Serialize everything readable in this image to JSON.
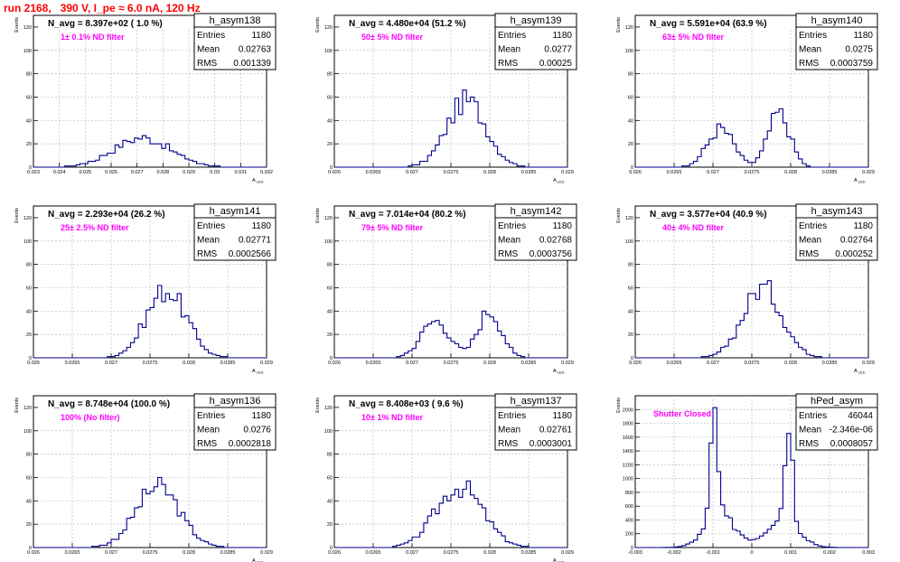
{
  "canvas": {
    "title": "run 2168,   390 V, I_pe ≈ 6.0 nA, 120 Hz",
    "colors": {
      "title": "#ff0000",
      "note": "#ff00ff",
      "hist": "#00008b",
      "grid": "#bdbdbd"
    }
  },
  "chart_data": [
    {
      "type": "histogram",
      "name": "h_asym138",
      "ylabel": "Events",
      "xlabel": "A_LED",
      "xlim": [
        0.023,
        0.032
      ],
      "ylim": [
        0,
        130
      ],
      "xticks": [
        "0.023",
        "0.024",
        "0.025",
        "0.026",
        "0.027",
        "0.028",
        "0.029",
        "0.03",
        "0.031",
        "0.032"
      ],
      "yticks": [
        "0",
        "20",
        "40",
        "60",
        "80",
        "100",
        "120"
      ],
      "grid": true,
      "stats": [
        [
          "Entries",
          "1180"
        ],
        [
          "Mean",
          "0.02763"
        ],
        [
          "RMS",
          "0.001339"
        ]
      ],
      "navg": "N_avg = 8.397e+02 ( 1.0 %)",
      "note": "1± 0.1% ND filter",
      "shape": [
        [
          0.0272,
          0.0011,
          25,
          1
        ]
      ],
      "x": [],
      "values": []
    },
    {
      "type": "histogram",
      "name": "h_asym139",
      "ylabel": "Events",
      "xlabel": "A_LED",
      "xlim": [
        0.026,
        0.029
      ],
      "ylim": [
        0,
        130
      ],
      "xticks": [
        "0.026",
        "0.0265",
        "0.027",
        "0.0275",
        "0.028",
        "0.0285",
        "0.029"
      ],
      "yticks": [
        "0",
        "20",
        "40",
        "60",
        "80",
        "100",
        "120"
      ],
      "grid": true,
      "stats": [
        [
          "Entries",
          "1180"
        ],
        [
          "Mean",
          "0.0277"
        ],
        [
          "RMS",
          "0.00025"
        ]
      ],
      "navg": "N_avg = 4.480e+04 (51.2 %)",
      "note": "50± 5% ND filter",
      "shape": [
        [
          0.0277,
          0.00025,
          57,
          1
        ]
      ],
      "x": [],
      "values": []
    },
    {
      "type": "histogram",
      "name": "h_asym140",
      "ylabel": "Events",
      "xlabel": "A_LED",
      "xlim": [
        0.026,
        0.029
      ],
      "ylim": [
        0,
        130
      ],
      "xticks": [
        "0.026",
        "0.0265",
        "0.027",
        "0.0275",
        "0.028",
        "0.0285",
        "0.029"
      ],
      "yticks": [
        "0",
        "20",
        "40",
        "60",
        "80",
        "100",
        "120"
      ],
      "grid": true,
      "stats": [
        [
          "Entries",
          "1180"
        ],
        [
          "Mean",
          "0.0275"
        ],
        [
          "RMS",
          "0.0003759"
        ]
      ],
      "navg": "N_avg = 5.591e+04 (63.9 %)",
      "note": "63± 5% ND filter",
      "shape": [
        [
          0.0271,
          0.00017,
          33,
          1
        ],
        [
          0.02785,
          0.00014,
          46,
          1
        ]
      ],
      "x": [],
      "values": []
    },
    {
      "type": "histogram",
      "name": "h_asym141",
      "ylabel": "Events",
      "xlabel": "A_LED",
      "xlim": [
        0.026,
        0.029
      ],
      "ylim": [
        0,
        130
      ],
      "xticks": [
        "0.026",
        "0.0265",
        "0.027",
        "0.0275",
        "0.028",
        "0.0285",
        "0.029"
      ],
      "yticks": [
        "0",
        "20",
        "40",
        "60",
        "80",
        "100",
        "120"
      ],
      "grid": true,
      "stats": [
        [
          "Entries",
          "1180"
        ],
        [
          "Mean",
          "0.02771"
        ],
        [
          "RMS",
          "0.0002566"
        ]
      ],
      "navg": "N_avg = 2.293e+04 (26.2 %)",
      "note": "25± 2.5% ND filter",
      "shape": [
        [
          0.02771,
          0.000256,
          58,
          1
        ]
      ],
      "x": [],
      "values": []
    },
    {
      "type": "histogram",
      "name": "h_asym142",
      "ylabel": "Events",
      "xlabel": "A_LED",
      "xlim": [
        0.026,
        0.029
      ],
      "ylim": [
        0,
        130
      ],
      "xticks": [
        "0.026",
        "0.0265",
        "0.027",
        "0.0275",
        "0.028",
        "0.0285",
        "0.029"
      ],
      "yticks": [
        "0",
        "20",
        "40",
        "60",
        "80",
        "100",
        "120"
      ],
      "grid": true,
      "stats": [
        [
          "Entries",
          "1180"
        ],
        [
          "Mean",
          "0.02768"
        ],
        [
          "RMS",
          "0.0003756"
        ]
      ],
      "navg": "N_avg = 7.014e+04 (80.2 %)",
      "note": "79± 5% ND filter",
      "shape": [
        [
          0.0273,
          0.00018,
          32,
          1
        ],
        [
          0.028,
          0.00015,
          40,
          1
        ]
      ],
      "x": [],
      "values": []
    },
    {
      "type": "histogram",
      "name": "h_asym143",
      "ylabel": "Events",
      "xlabel": "A_LED",
      "xlim": [
        0.026,
        0.029
      ],
      "ylim": [
        0,
        130
      ],
      "xticks": [
        "0.026",
        "0.0265",
        "0.027",
        "0.0275",
        "0.028",
        "0.0285",
        "0.029"
      ],
      "yticks": [
        "0",
        "20",
        "40",
        "60",
        "80",
        "100",
        "120"
      ],
      "grid": true,
      "stats": [
        [
          "Entries",
          "1180"
        ],
        [
          "Mean",
          "0.02764"
        ],
        [
          "RMS",
          "0.000252"
        ]
      ],
      "navg": "N_avg = 3.577e+04 (40.9 %)",
      "note": "40± 4% ND filter",
      "shape": [
        [
          0.02764,
          0.000252,
          60,
          1
        ]
      ],
      "x": [],
      "values": []
    },
    {
      "type": "histogram",
      "name": "h_asym136",
      "ylabel": "Events",
      "xlabel": "A_LED",
      "xlim": [
        0.026,
        0.029
      ],
      "ylim": [
        0,
        130
      ],
      "xticks": [
        "0.026",
        "0.0265",
        "0.027",
        "0.0275",
        "0.028",
        "0.0285",
        "0.029"
      ],
      "yticks": [
        "0",
        "20",
        "40",
        "60",
        "80",
        "100",
        "120"
      ],
      "grid": true,
      "stats": [
        [
          "Entries",
          "1180"
        ],
        [
          "Mean",
          "0.0276"
        ],
        [
          "RMS",
          "0.0002818"
        ]
      ],
      "navg": "N_avg = 8.748e+04 (100.0 %)",
      "note": "100% (No filter)",
      "shape": [
        [
          0.0276,
          0.00028,
          52,
          1
        ]
      ],
      "x": [],
      "values": []
    },
    {
      "type": "histogram",
      "name": "h_asym137",
      "ylabel": "Events",
      "xlabel": "A_LED",
      "xlim": [
        0.026,
        0.029
      ],
      "ylim": [
        0,
        130
      ],
      "xticks": [
        "0.026",
        "0.0265",
        "0.027",
        "0.0275",
        "0.028",
        "0.0285",
        "0.029"
      ],
      "yticks": [
        "0",
        "20",
        "40",
        "60",
        "80",
        "100",
        "120"
      ],
      "grid": true,
      "stats": [
        [
          "Entries",
          "1180"
        ],
        [
          "Mean",
          "0.02761"
        ],
        [
          "RMS",
          "0.0003001"
        ]
      ],
      "navg": "N_avg = 8.408e+03 ( 9.6 %)",
      "note": "10± 1% ND filter",
      "shape": [
        [
          0.02761,
          0.0003,
          52,
          1
        ]
      ],
      "x": [],
      "values": []
    },
    {
      "type": "histogram",
      "name": "hPed_asym",
      "ylabel": "Events",
      "xlabel": "",
      "xlim": [
        -0.003,
        0.003
      ],
      "ylim": [
        0,
        2200
      ],
      "xticks": [
        "-0.003",
        "-0.002",
        "-0.001",
        "0",
        "0.001",
        "0.002",
        "0.003"
      ],
      "yticks": [
        "0",
        "200",
        "400",
        "600",
        "800",
        "1000",
        "1200",
        "1400",
        "1600",
        "1800",
        "2000"
      ],
      "grid": true,
      "stats": [
        [
          "Entries",
          "46044"
        ],
        [
          "Mean",
          "-2.346e-06"
        ],
        [
          "RMS",
          "0.0008057"
        ]
      ],
      "navg": "",
      "note": "Shutter Closed",
      "shape": [
        [
          -0.00097,
          9e-05,
          1550,
          1
        ],
        [
          0.00095,
          9e-05,
          1550,
          1
        ],
        [
          -0.0008,
          0.0004,
          450,
          1
        ],
        [
          0.0008,
          0.0004,
          450,
          1
        ]
      ],
      "x": [],
      "values": []
    }
  ]
}
